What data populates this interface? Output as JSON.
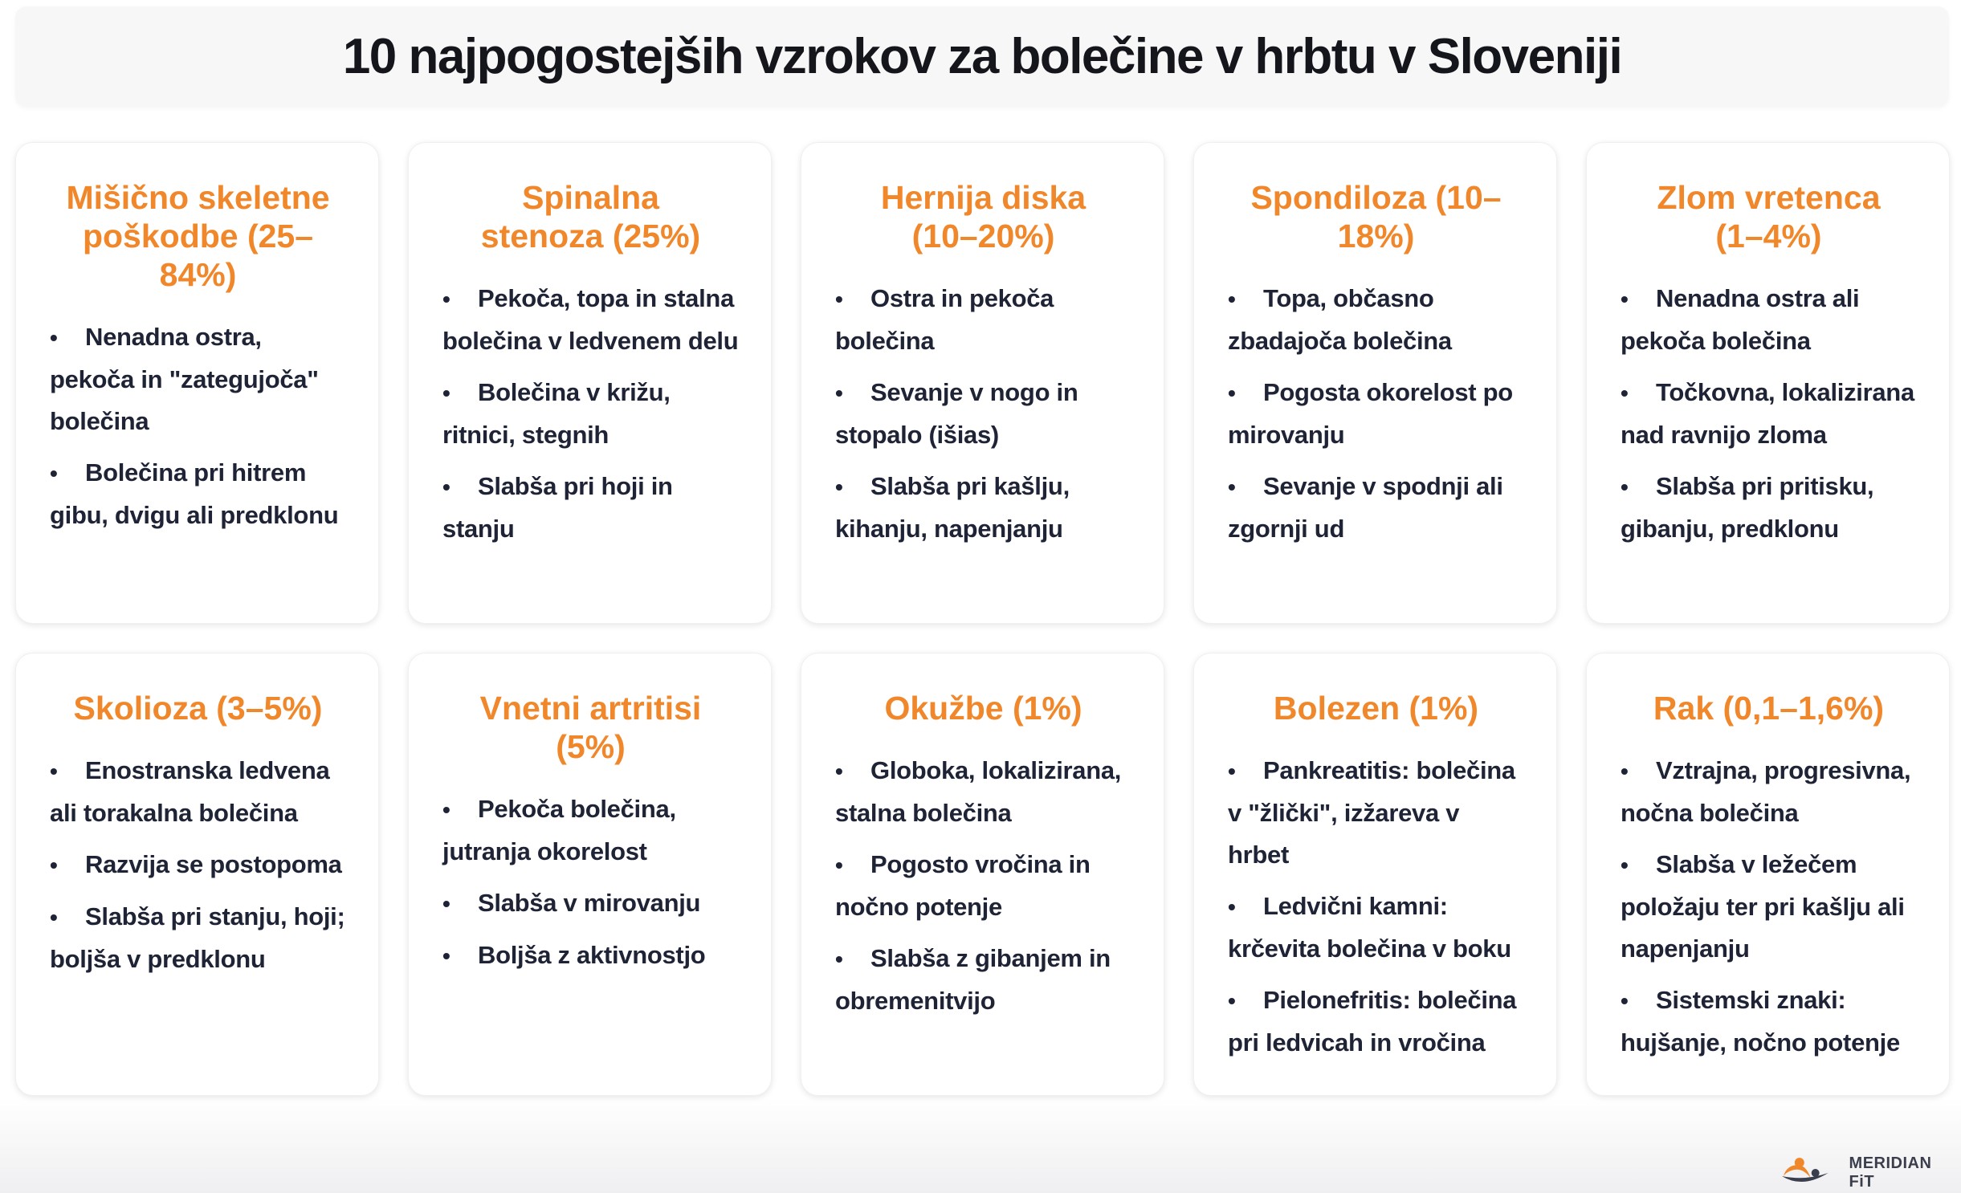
{
  "title": "10 najpogostejših vzrokov za bolečine v hrbtu v Sloveniji",
  "brand": {
    "name": "MERIDIAN FiT",
    "accent": "#f0872a",
    "dark": "#3b3e4d"
  },
  "colors": {
    "heading": "#f0872a",
    "text": "#1f2336"
  },
  "cards": [
    {
      "title": "Mišično skeletne poškodbe (25–84%)",
      "items": [
        "Nenadna ostra, pekoča in \"zategujoča\" bolečina",
        "Bolečina pri hitrem gibu, dvigu ali predklonu"
      ]
    },
    {
      "title": "Spinalna stenoza (25%)",
      "items": [
        "Pekoča, topa in stalna bolečina v ledvenem delu",
        "Bolečina v križu, ritnici, stegnih",
        "Slabša pri hoji in stanju"
      ]
    },
    {
      "title": "Hernija diska (10–20%)",
      "items": [
        "Ostra in pekoča bolečina",
        "Sevanje v nogo in stopalo (išias)",
        "Slabša pri kašlju, kihanju, napenjanju"
      ]
    },
    {
      "title": "Spondiloza (10–18%)",
      "items": [
        "Topa, občasno zbadajoča bolečina",
        "Pogosta okorelost po mirovanju",
        "Sevanje v spodnji ali zgornji ud"
      ]
    },
    {
      "title": "Zlom vretenca (1–4%)",
      "items": [
        "Nenadna ostra ali pekoča bolečina",
        "Točkovna, lokalizirana nad ravnijo zloma",
        "Slabša pri pritisku, gibanju, predklonu"
      ]
    },
    {
      "title": "Skolioza (3–5%)",
      "items": [
        "Enostranska ledvena ali torakalna bolečina",
        "Razvija se postopoma",
        "Slabša pri stanju, hoji; boljša v predklonu"
      ]
    },
    {
      "title": "Vnetni artritisi (5%)",
      "items": [
        "Pekoča bolečina, jutranja okorelost",
        "Slabša v mirovanju",
        "Boljša z aktivnostjo"
      ]
    },
    {
      "title": "Okužbe (1%)",
      "items": [
        "Globoka, lokalizirana, stalna bolečina",
        "Pogosto vročina in nočno potenje",
        "Slabša z gibanjem in obremenitvijo"
      ]
    },
    {
      "title": "Bolezen (1%)",
      "items": [
        "Pankreatitis: bolečina v \"žlički\", izžareva v hrbet",
        "Ledvični kamni: krčevita bolečina v boku",
        "Pielonefritis: bolečina pri ledvicah in vročina"
      ]
    },
    {
      "title": "Rak (0,1–1,6%)",
      "items": [
        "Vztrajna, progresivna, nočna bolečina",
        "Slabša v ležečem položaju ter pri kašlju ali napenjanju",
        "Sistemski znaki: hujšanje, nočno potenje"
      ]
    }
  ]
}
